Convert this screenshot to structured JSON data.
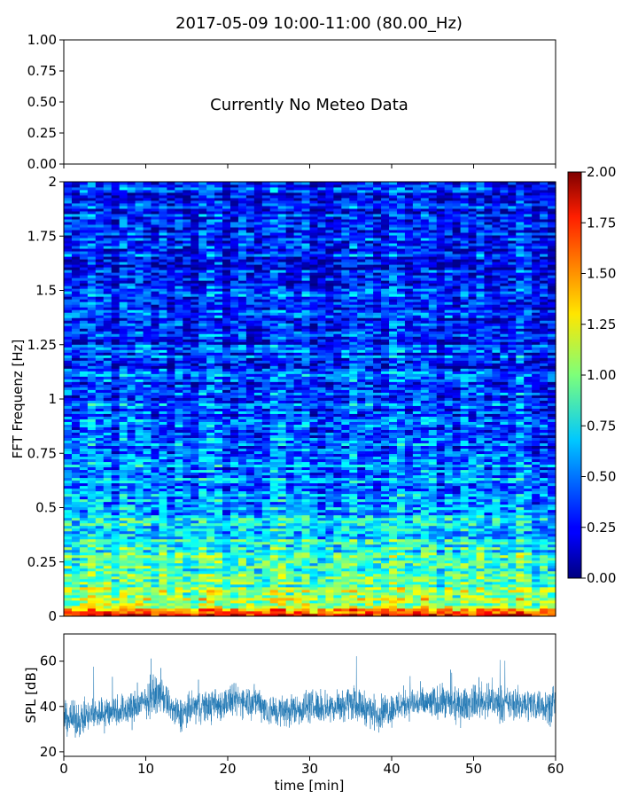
{
  "figure": {
    "title": "2017-05-09 10:00-11:00 (80.00_Hz)"
  },
  "chart_data": [
    {
      "id": "meteo",
      "type": "text",
      "annotation": "Currently No Meteo Data",
      "ylim": [
        0,
        1
      ],
      "yticks": [
        "0.00",
        "0.25",
        "0.50",
        "0.75",
        "1.00"
      ],
      "ytick_values": [
        0,
        0.25,
        0.5,
        0.75,
        1.0
      ],
      "xlim": [
        0,
        60
      ]
    },
    {
      "id": "spectrogram",
      "type": "heatmap",
      "ylabel": "FFT Frequenz [Hz]",
      "xlim": [
        0,
        60
      ],
      "ylim": [
        0,
        2
      ],
      "yticks": [
        "0",
        "0.25",
        "0.5",
        "0.75",
        "1",
        "1.25",
        "1.5",
        "1.75",
        "2"
      ],
      "ytick_values": [
        0,
        0.25,
        0.5,
        0.75,
        1.0,
        1.25,
        1.5,
        1.75,
        2.0
      ],
      "colormap": "jet",
      "colorbar": {
        "range": [
          0,
          2
        ],
        "ticks": [
          "0.00",
          "0.25",
          "0.50",
          "0.75",
          "1.00",
          "1.25",
          "1.50",
          "1.75",
          "2.00"
        ],
        "tick_values": [
          0,
          0.25,
          0.5,
          0.75,
          1.0,
          1.25,
          1.5,
          1.75,
          2.0
        ]
      },
      "level_profile": [
        {
          "freq": 0.0,
          "value": 1.8
        },
        {
          "freq": 0.05,
          "value": 1.1
        },
        {
          "freq": 0.25,
          "value": 0.85
        },
        {
          "freq": 0.5,
          "value": 0.6
        },
        {
          "freq": 0.75,
          "value": 0.45
        },
        {
          "freq": 1.0,
          "value": 0.4
        },
        {
          "freq": 1.5,
          "value": 0.3
        },
        {
          "freq": 2.0,
          "value": 0.3
        }
      ]
    },
    {
      "id": "spl",
      "type": "line",
      "ylabel": "SPL [dB]",
      "xlabel": "time [min]",
      "xlim": [
        0,
        60
      ],
      "ylim": [
        18,
        72
      ],
      "xticks": [
        "0",
        "10",
        "20",
        "30",
        "40",
        "50",
        "60"
      ],
      "xtick_values": [
        0,
        10,
        20,
        30,
        40,
        50,
        60
      ],
      "yticks": [
        "20",
        "40",
        "60"
      ],
      "ytick_values": [
        20,
        40,
        60
      ],
      "color": "#1f77b4",
      "series_trend": [
        {
          "t": 0,
          "db": 35
        },
        {
          "t": 2,
          "db": 34
        },
        {
          "t": 4,
          "db": 37
        },
        {
          "t": 6,
          "db": 38
        },
        {
          "t": 8,
          "db": 39
        },
        {
          "t": 10,
          "db": 42
        },
        {
          "t": 11,
          "db": 45
        },
        {
          "t": 12,
          "db": 45
        },
        {
          "t": 13,
          "db": 40
        },
        {
          "t": 14,
          "db": 36
        },
        {
          "t": 16,
          "db": 40
        },
        {
          "t": 18,
          "db": 40
        },
        {
          "t": 20,
          "db": 42
        },
        {
          "t": 22,
          "db": 43
        },
        {
          "t": 24,
          "db": 42
        },
        {
          "t": 25,
          "db": 38
        },
        {
          "t": 27,
          "db": 38
        },
        {
          "t": 30,
          "db": 40
        },
        {
          "t": 33,
          "db": 40
        },
        {
          "t": 35,
          "db": 42
        },
        {
          "t": 37,
          "db": 39
        },
        {
          "t": 38,
          "db": 37
        },
        {
          "t": 40,
          "db": 39
        },
        {
          "t": 42,
          "db": 42
        },
        {
          "t": 44,
          "db": 41
        },
        {
          "t": 46,
          "db": 42
        },
        {
          "t": 48,
          "db": 40
        },
        {
          "t": 50,
          "db": 42
        },
        {
          "t": 52,
          "db": 42
        },
        {
          "t": 54,
          "db": 41
        },
        {
          "t": 56,
          "db": 41
        },
        {
          "t": 58,
          "db": 41
        },
        {
          "t": 60,
          "db": 40
        }
      ]
    }
  ]
}
